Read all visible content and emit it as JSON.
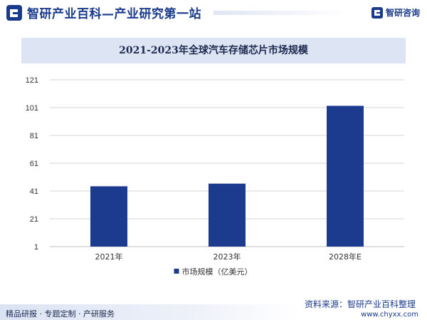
{
  "header": {
    "slogan": "智研产业百科—产业研究第一站",
    "brand_name": "智研咨询"
  },
  "footer": {
    "left_text": "精品研报 · 专题定制 · 产研服务",
    "source_text": "资料来源：智研产业百科整理",
    "website": "www.chyxx.com"
  },
  "colors": {
    "bar": "#1c3a8e",
    "brand": "#1a3a8c",
    "title_band": "#dde4f3"
  },
  "chart_data": {
    "type": "bar",
    "title": "2021-2023年全球汽车存储芯片市场规模",
    "categories": [
      "2021年",
      "2023年",
      "2028年E"
    ],
    "series": [
      {
        "name": "市场规模（亿美元）",
        "values": [
          44.4,
          46.3,
          102.3
        ]
      }
    ],
    "yticks": [
      "1",
      "21",
      "41",
      "61",
      "81",
      "101",
      "121"
    ],
    "ylim": [
      1,
      121
    ],
    "grid": true,
    "legend_position": "bottom"
  }
}
